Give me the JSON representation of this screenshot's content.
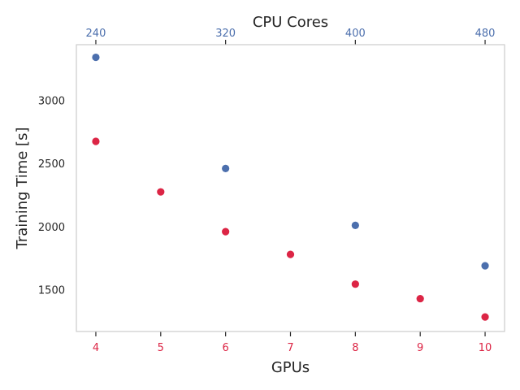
{
  "chart_data": {
    "type": "scatter",
    "xlabel": "GPUs",
    "ylabel": "Training Time [s]",
    "x2label": "CPU Cores",
    "xlim": [
      3.7,
      10.3
    ],
    "ylim": [
      1170,
      3440
    ],
    "x_ticks": [
      4,
      5,
      6,
      7,
      8,
      9,
      10
    ],
    "y_ticks": [
      1500,
      2000,
      2500,
      3000
    ],
    "x2_ticks": [
      {
        "label": "240",
        "at_gpu": 4
      },
      {
        "label": "320",
        "at_gpu": 6
      },
      {
        "label": "400",
        "at_gpu": 8
      },
      {
        "label": "480",
        "at_gpu": 10
      }
    ],
    "grid": false,
    "colors": {
      "gpu": "#dc2545",
      "cpu": "#4c6fad",
      "axis_text": "#262626",
      "frame": "#cccccc"
    },
    "series": [
      {
        "key": "gpu",
        "axis": "bottom",
        "points": [
          {
            "x": 4,
            "y": 2675
          },
          {
            "x": 5,
            "y": 2275
          },
          {
            "x": 6,
            "y": 1960
          },
          {
            "x": 7,
            "y": 1780
          },
          {
            "x": 8,
            "y": 1545
          },
          {
            "x": 9,
            "y": 1430
          },
          {
            "x": 10,
            "y": 1285
          }
        ]
      },
      {
        "key": "cpu",
        "axis": "top",
        "points": [
          {
            "x": 240,
            "y": 3340
          },
          {
            "x": 320,
            "y": 2460
          },
          {
            "x": 400,
            "y": 2010
          },
          {
            "x": 480,
            "y": 1690
          }
        ]
      }
    ]
  }
}
